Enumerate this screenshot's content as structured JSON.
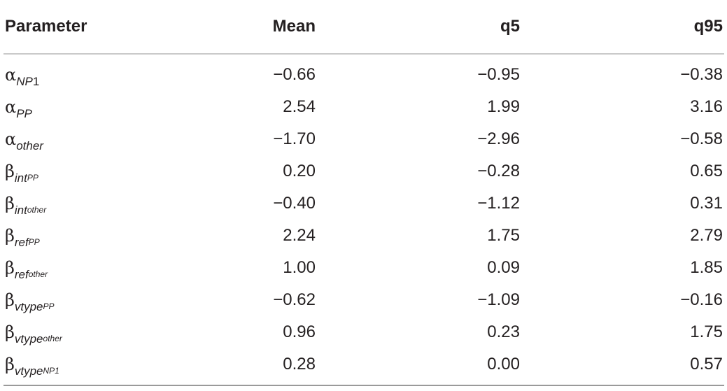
{
  "table": {
    "headers": [
      "Parameter",
      "Mean",
      "q5",
      "q95"
    ],
    "rows": [
      {
        "symbol": "α",
        "sub": "NP",
        "sub_tail": "1",
        "subsub": "",
        "mean": "−0.66",
        "q5": "−0.95",
        "q95": "−0.38"
      },
      {
        "symbol": "α",
        "sub": "PP",
        "sub_tail": "",
        "subsub": "",
        "mean": "2.54",
        "q5": "1.99",
        "q95": "3.16"
      },
      {
        "symbol": "α",
        "sub": "other",
        "sub_tail": "",
        "subsub": "",
        "mean": "−1.70",
        "q5": "−2.96",
        "q95": "−0.58"
      },
      {
        "symbol": "β",
        "sub": "int",
        "sub_tail": "",
        "subsub": "PP",
        "mean": "0.20",
        "q5": "−0.28",
        "q95": "0.65"
      },
      {
        "symbol": "β",
        "sub": "int",
        "sub_tail": "",
        "subsub": "other",
        "mean": "−0.40",
        "q5": "−1.12",
        "q95": "0.31"
      },
      {
        "symbol": "β",
        "sub": "ref",
        "sub_tail": "",
        "subsub": "PP",
        "mean": "2.24",
        "q5": "1.75",
        "q95": "2.79"
      },
      {
        "symbol": "β",
        "sub": "ref",
        "sub_tail": "",
        "subsub": "other",
        "mean": "1.00",
        "q5": "0.09",
        "q95": "1.85"
      },
      {
        "symbol": "β",
        "sub": "vtype",
        "sub_tail": "",
        "subsub": "PP",
        "mean": "−0.62",
        "q5": "−1.09",
        "q95": "−0.16"
      },
      {
        "symbol": "β",
        "sub": "vtype",
        "sub_tail": "",
        "subsub": "other",
        "mean": "0.96",
        "q5": "0.23",
        "q95": "1.75"
      },
      {
        "symbol": "β",
        "sub": "vtype",
        "sub_tail": "",
        "subsub": "NP1",
        "mean": "0.28",
        "q5": "0.00",
        "q95": "0.57"
      }
    ]
  }
}
